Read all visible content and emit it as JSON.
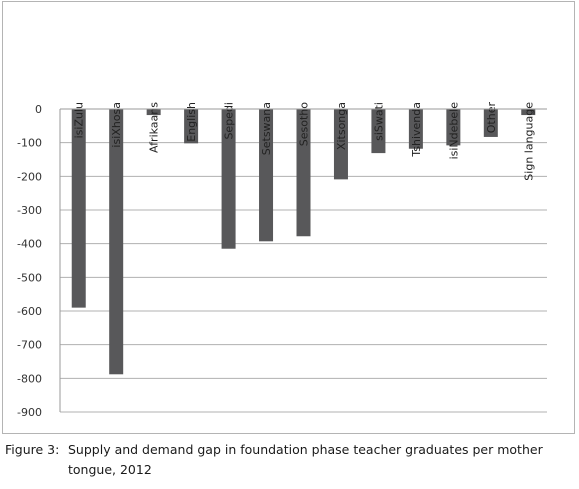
{
  "chart_data": {
    "type": "bar",
    "categories": [
      "isiZulu",
      "isiXhosa",
      "Afrikaans",
      "English",
      "Sepedi",
      "Setswana",
      "Sesotho",
      "Xitsonga",
      "siSwati",
      "Tshivenda",
      "isiNdebele",
      "Other",
      "Sign language"
    ],
    "values": [
      -590,
      -788,
      -18,
      -102,
      -415,
      -393,
      -378,
      -209,
      -131,
      -118,
      -108,
      -83,
      -18
    ],
    "ylim": [
      -900,
      0
    ],
    "yticks": [
      0,
      -100,
      -200,
      -300,
      -400,
      -500,
      -600,
      -700,
      -800,
      -900
    ],
    "title": "",
    "xlabel": "",
    "ylabel": "",
    "grid": true,
    "bar_color": "#58585a",
    "grid_color": "#b0b0b0"
  },
  "caption": {
    "label": "Figure 3:",
    "line1": "Supply and demand gap in foundation phase teacher graduates per mother",
    "line2": "tongue, 2012"
  }
}
